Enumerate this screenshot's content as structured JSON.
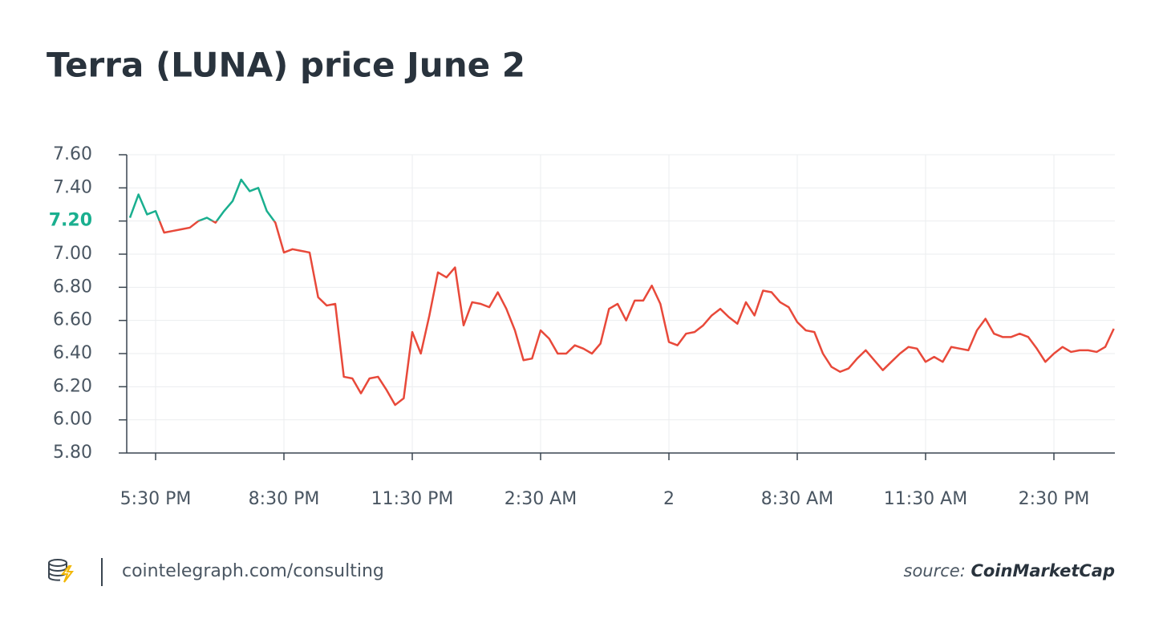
{
  "chart_data": {
    "type": "line",
    "title": "Terra (LUNA) price June 2",
    "x": [
      -0.6,
      -0.4,
      -0.2,
      0,
      0.2,
      0.4,
      0.6,
      0.8,
      1.0,
      1.2,
      1.4,
      1.6,
      1.8,
      2.0,
      2.2,
      2.4,
      2.6,
      2.8,
      3.0,
      3.2,
      3.4,
      3.6,
      3.8,
      4.0,
      4.2,
      4.4,
      4.6,
      4.8,
      5.0,
      5.2,
      5.4,
      5.6,
      5.8,
      6.0,
      6.2,
      6.4,
      6.6,
      6.8,
      7.0,
      7.2,
      7.4,
      7.6,
      7.8,
      8.0,
      8.2,
      8.4,
      8.6,
      8.8,
      9.0,
      9.2,
      9.4,
      9.6,
      9.8,
      10.0,
      10.2,
      10.4,
      10.6,
      10.8,
      11.0,
      11.2,
      11.4,
      11.6,
      11.8,
      12.0,
      12.2,
      12.4,
      12.6,
      12.8,
      13.0,
      13.2,
      13.4,
      13.6,
      13.8,
      14.0,
      14.2,
      14.4,
      14.6,
      14.8,
      15.0,
      15.2,
      15.4,
      15.6,
      15.8,
      16.0,
      16.2,
      16.4,
      16.6,
      16.8,
      17.0,
      17.2,
      17.4,
      17.6,
      17.8,
      18.0,
      18.2,
      18.4,
      18.6,
      18.8,
      19.0,
      19.2,
      19.4,
      19.6,
      19.8,
      20.0,
      20.2,
      20.4,
      20.6,
      20.8,
      21.0,
      21.2,
      21.4,
      21.6,
      21.8,
      22.0,
      22.2,
      22.4
    ],
    "values": [
      7.22,
      7.36,
      7.24,
      7.26,
      7.13,
      7.14,
      7.15,
      7.16,
      7.2,
      7.22,
      7.19,
      7.26,
      7.32,
      7.45,
      7.38,
      7.4,
      7.26,
      7.19,
      7.01,
      7.03,
      7.02,
      7.01,
      6.74,
      6.69,
      6.7,
      6.26,
      6.25,
      6.16,
      6.25,
      6.26,
      6.18,
      6.09,
      6.13,
      6.53,
      6.4,
      6.63,
      6.89,
      6.86,
      6.92,
      6.57,
      6.71,
      6.7,
      6.68,
      6.77,
      6.67,
      6.54,
      6.36,
      6.37,
      6.54,
      6.49,
      6.4,
      6.4,
      6.45,
      6.43,
      6.4,
      6.46,
      6.67,
      6.7,
      6.6,
      6.72,
      6.72,
      6.81,
      6.7,
      6.47,
      6.45,
      6.52,
      6.53,
      6.57,
      6.63,
      6.67,
      6.62,
      6.58,
      6.71,
      6.63,
      6.78,
      6.77,
      6.71,
      6.68,
      6.59,
      6.54,
      6.53,
      6.4,
      6.32,
      6.29,
      6.31,
      6.37,
      6.42,
      6.36,
      6.3,
      6.35,
      6.4,
      6.44,
      6.43,
      6.35,
      6.38,
      6.35,
      6.44,
      6.43,
      6.42,
      6.54,
      6.61,
      6.52,
      6.5,
      6.5,
      6.52,
      6.5,
      6.43,
      6.35,
      6.4,
      6.44,
      6.41,
      6.42,
      6.42,
      6.41,
      6.44,
      6.55
    ],
    "baseline": 7.2,
    "color_above": "#1aaf8f",
    "color_below": "#e8493a",
    "xlim": [
      -0.675,
      22.425
    ],
    "xticks": [
      {
        "value": 0,
        "label": "5:30 PM"
      },
      {
        "value": 3,
        "label": "8:30 PM"
      },
      {
        "value": 6,
        "label": "11:30 PM"
      },
      {
        "value": 9,
        "label": "2:30 AM"
      },
      {
        "value": 12,
        "label": "2"
      },
      {
        "value": 15,
        "label": "8:30 AM"
      },
      {
        "value": 18,
        "label": "11:30 AM"
      },
      {
        "value": 21,
        "label": "2:30 PM"
      }
    ],
    "ylim": [
      5.8,
      7.6
    ],
    "yticks": [
      {
        "value": 5.8,
        "label": "5.80"
      },
      {
        "value": 6.0,
        "label": "6.00"
      },
      {
        "value": 6.2,
        "label": "6.20"
      },
      {
        "value": 6.4,
        "label": "6.40"
      },
      {
        "value": 6.6,
        "label": "6.60"
      },
      {
        "value": 6.8,
        "label": "6.80"
      },
      {
        "value": 7.0,
        "label": "7.00"
      },
      {
        "value": 7.2,
        "label": "7.20"
      },
      {
        "value": 7.4,
        "label": "7.40"
      },
      {
        "value": 7.6,
        "label": "7.60"
      }
    ],
    "grid": true
  },
  "footer": {
    "site": "cointelegraph.com/consulting",
    "source_label": "source:",
    "source": "CoinMarketCap"
  }
}
